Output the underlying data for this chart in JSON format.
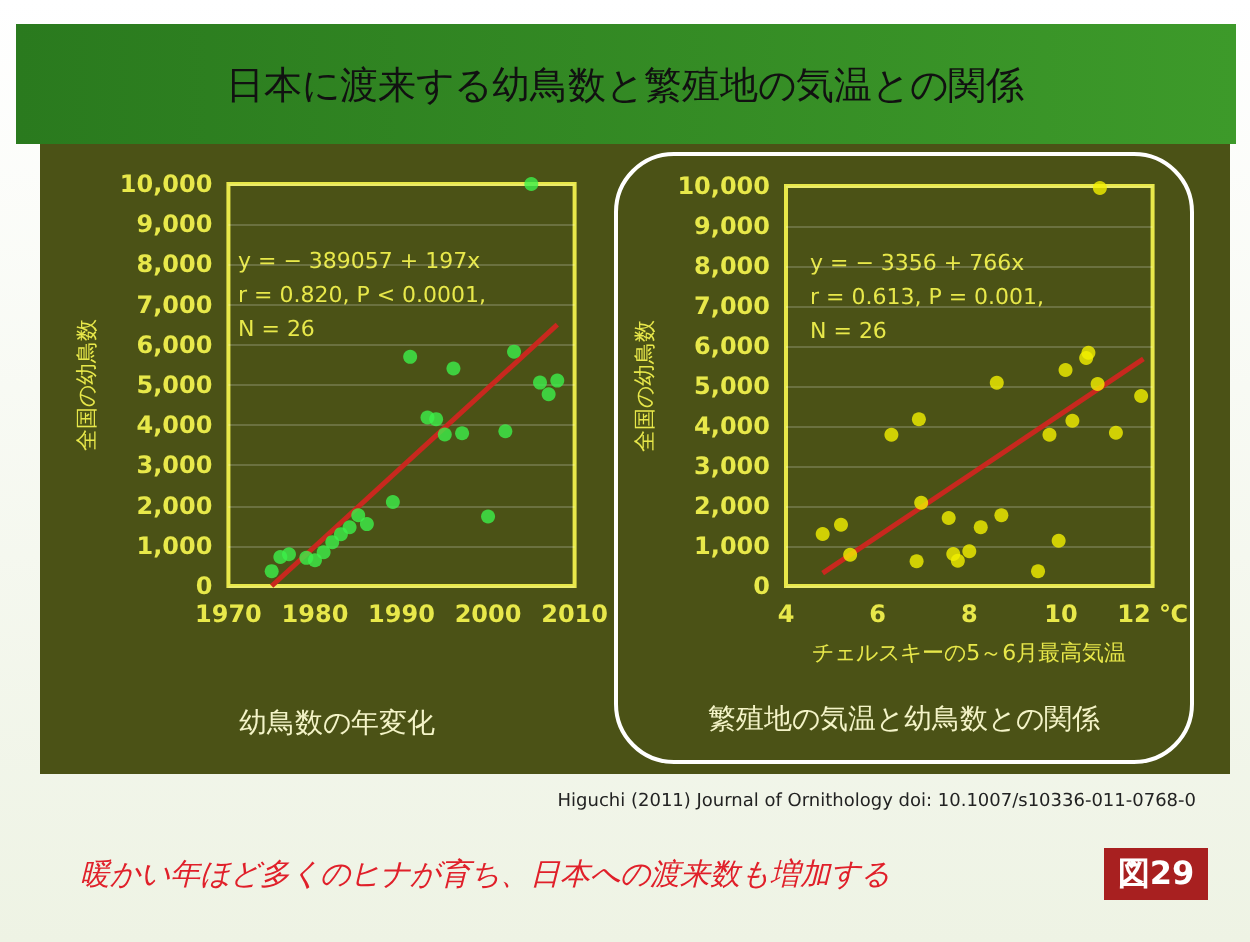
{
  "chart_data": [
    {
      "type": "scatter",
      "title": "日本に渡来する幼鳥数と繁殖地の気温との関係",
      "subtitle": "幼鳥数の年変化",
      "ylabel": "全国の幼鳥数",
      "annotations": [
        "y = − 389057 + 197x\nr = 0.820, P < 0.0001,\nN = 26"
      ],
      "xlim": [
        1970,
        2010
      ],
      "xticks": [
        1970,
        1980,
        1990,
        2000,
        2010
      ],
      "ylim": [
        0,
        10000
      ],
      "yticks": [
        0,
        {
          "value": 1000,
          "label": "1,000"
        },
        {
          "value": 2000,
          "label": "2,000"
        },
        {
          "value": 3000,
          "label": "3,000"
        },
        {
          "value": 4000,
          "label": "4,000"
        },
        {
          "value": 5000,
          "label": "5,000"
        },
        {
          "value": 6000,
          "label": "6,000"
        },
        {
          "value": 7000,
          "label": "7,000"
        },
        {
          "value": 8000,
          "label": "8,000"
        },
        {
          "value": 9000,
          "label": "9,000"
        },
        {
          "value": 10000,
          "label": "10,000"
        }
      ],
      "grid": "y",
      "marker": "circle",
      "series": [
        {
          "type": "scatter",
          "color": "#3cf04a",
          "x": [
            1975,
            1976,
            1977,
            1979,
            1980,
            1981,
            1982,
            1983,
            1984,
            1985,
            1986,
            1989,
            1991,
            1993,
            1994,
            1995,
            1996,
            1997,
            2000,
            2002,
            2003,
            2005,
            2006,
            2007,
            2008
          ],
          "values": [
            370,
            720,
            790,
            700,
            640,
            840,
            1090,
            1290,
            1460,
            1760,
            1540,
            2090,
            5700,
            4190,
            4150,
            3770,
            5410,
            3800,
            1730,
            3850,
            5830,
            10000,
            5060,
            4770,
            5110
          ]
        },
        {
          "type": "line",
          "color": "#c8281e",
          "line_style": "solid",
          "marker": "none",
          "x": [
            1975,
            2008
          ],
          "values": [
            0,
            6500
          ]
        }
      ]
    },
    {
      "type": "scatter",
      "subtitle": "繁殖地の気温と幼鳥数との関係",
      "ylabel": "全国の幼鳥数",
      "xlabel": "チェルスキーの5～6月最高気温",
      "annotations": [
        "y = − 3356 + 766x\nr = 0.613, P = 0.001,\nN = 26",
        "Higuchi (2011) Journal of Ornithology doi: 10.1007/s10336-011-0768-0",
        "暖かい年ほど多くのヒナが育ち、日本への渡来数も増加する",
        "図29"
      ],
      "xlim": [
        4,
        12
      ],
      "xticks": [
        4,
        6,
        8,
        10,
        {
          "value": 12,
          "label": "12 ℃"
        }
      ],
      "ylim": [
        0,
        10000
      ],
      "yticks": [
        0,
        {
          "value": 1000,
          "label": "1,000"
        },
        {
          "value": 2000,
          "label": "2,000"
        },
        {
          "value": 3000,
          "label": "3,000"
        },
        {
          "value": 4000,
          "label": "4,000"
        },
        {
          "value": 5000,
          "label": "5,000"
        },
        {
          "value": 6000,
          "label": "6,000"
        },
        {
          "value": 7000,
          "label": "7,000"
        },
        {
          "value": 8000,
          "label": "8,000"
        },
        {
          "value": 9000,
          "label": "9,000"
        },
        {
          "value": 10000,
          "label": "10,000"
        }
      ],
      "grid": "y",
      "marker": "circle",
      "series": [
        {
          "type": "scatter",
          "color": "#f2f000",
          "x": [
            4.8,
            5.2,
            5.4,
            6.3,
            6.85,
            6.9,
            6.95,
            7.55,
            7.65,
            7.75,
            8.0,
            8.25,
            8.6,
            8.7,
            9.5,
            9.75,
            9.95,
            10.1,
            10.25,
            10.55,
            10.6,
            10.8,
            10.85,
            11.2,
            11.75
          ],
          "values": [
            1300,
            1530,
            780,
            3780,
            620,
            4170,
            2080,
            1700,
            800,
            630,
            870,
            1470,
            5080,
            1770,
            370,
            3780,
            1130,
            5400,
            4130,
            5700,
            5830,
            5050,
            9950,
            3830,
            4750
          ]
        },
        {
          "type": "line",
          "color": "#c8281e",
          "line_style": "solid",
          "marker": "none",
          "x": [
            4.8,
            11.8
          ],
          "values": [
            320,
            5680
          ]
        }
      ]
    }
  ]
}
